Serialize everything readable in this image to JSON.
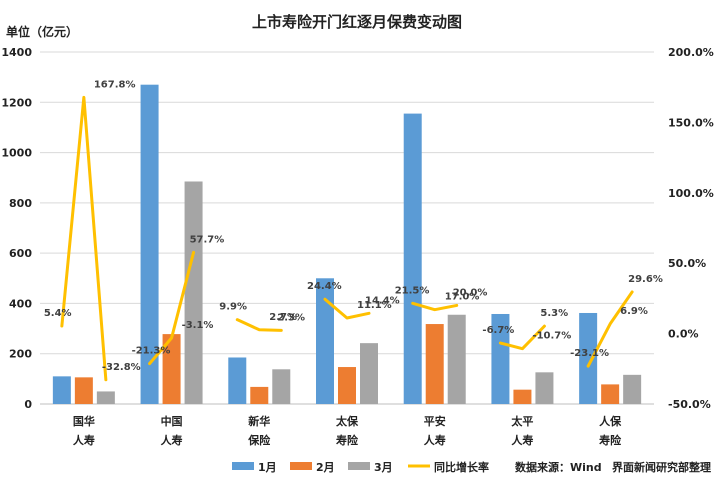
{
  "chart_data": {
    "type": "bar",
    "title": "上市寿险开门红逐月保费变动图",
    "ylabel": "单位（亿元）",
    "ylim": [
      0,
      1400
    ],
    "y2lim": [
      -50,
      200
    ],
    "yticks": [
      "0",
      "200",
      "400",
      "600",
      "800",
      "1000",
      "1200",
      "1400"
    ],
    "y2ticks": [
      "-50.0%",
      "0.0%",
      "50.0%",
      "100.0%",
      "150.0%",
      "200.0%"
    ],
    "grid": true,
    "legend_position": "bottom",
    "categories": [
      [
        "国华",
        "人寿"
      ],
      [
        "中国",
        "人寿"
      ],
      [
        "新华",
        "保险"
      ],
      [
        "太保",
        "寿险"
      ],
      [
        "平安",
        "人寿"
      ],
      [
        "太平",
        "人寿"
      ],
      [
        "人保",
        "寿险"
      ]
    ],
    "series": [
      {
        "name": "1月",
        "color": "#5B9BD5",
        "values": [
          110,
          1270,
          185,
          500,
          1155,
          358,
          362
        ]
      },
      {
        "name": "2月",
        "color": "#ED7D31",
        "values": [
          106,
          278,
          68,
          147,
          318,
          57,
          78
        ]
      },
      {
        "name": "3月",
        "color": "#A5A5A5",
        "values": [
          50,
          885,
          138,
          242,
          355,
          126,
          116
        ]
      }
    ],
    "growth": {
      "name": "同比增长率",
      "color": "#FFC000",
      "values": [
        [
          5.4,
          167.8,
          -32.8
        ],
        [
          -21.3,
          -3.1,
          57.7
        ],
        [
          9.9,
          2.7,
          2.3
        ],
        [
          24.4,
          11.1,
          14.4
        ],
        [
          21.5,
          17.0,
          20.0
        ],
        [
          -6.7,
          -10.7,
          5.3
        ],
        [
          -23.1,
          6.9,
          29.6
        ]
      ],
      "labels": [
        [
          "5.4%",
          "167.8%",
          "-32.8%"
        ],
        [
          "-21.3%",
          "-3.1%",
          "57.7%"
        ],
        [
          "9.9%",
          "2.7%",
          "2.3%"
        ],
        [
          "24.4%",
          "11.1%",
          "14.4%"
        ],
        [
          "21.5%",
          "17.0%",
          "20.0%"
        ],
        [
          "-6.7%",
          "-10.7%",
          "5.3%"
        ],
        [
          "-23.1%",
          "6.9%",
          "29.6%"
        ]
      ]
    },
    "source": "数据来源：Wind",
    "credit": "界面新闻研究部整理"
  }
}
